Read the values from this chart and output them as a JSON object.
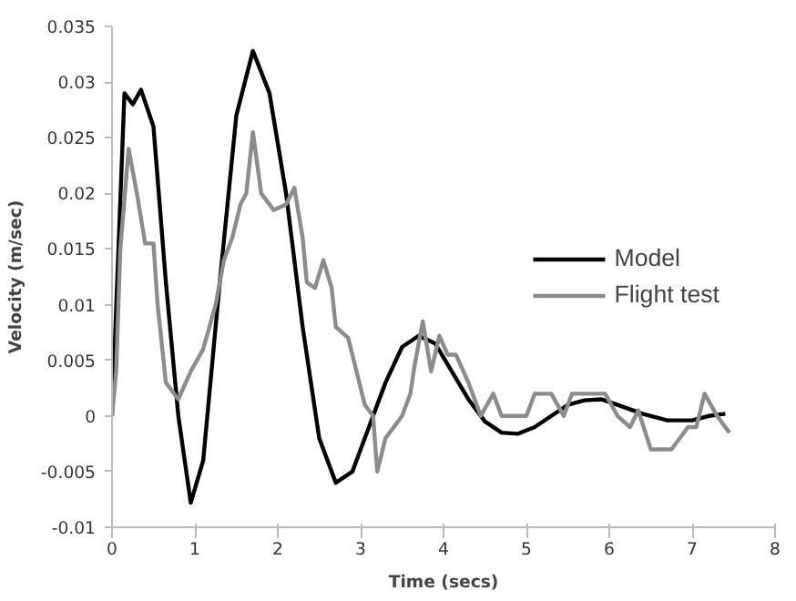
{
  "chart_data": {
    "type": "line",
    "xlabel": "Time (secs)",
    "ylabel": "Velocity (m/sec)",
    "xlim": [
      0,
      8
    ],
    "xticks": [
      0,
      1,
      2,
      3,
      4,
      5,
      6,
      7,
      8
    ],
    "ylim": [
      -0.01,
      0.035
    ],
    "yticks": [
      -0.01,
      -0.005,
      0,
      0.005,
      0.01,
      0.015,
      0.02,
      0.025,
      0.03,
      0.035
    ],
    "grid": false,
    "legend": "right",
    "marker": "none",
    "line_style": "solid",
    "series": [
      {
        "name": "Model",
        "color": "#000000",
        "x": [
          0,
          0.15,
          0.25,
          0.35,
          0.5,
          0.65,
          0.8,
          0.95,
          1.1,
          1.3,
          1.5,
          1.7,
          1.9,
          2.1,
          2.3,
          2.5,
          2.7,
          2.9,
          3.1,
          3.3,
          3.5,
          3.7,
          3.9,
          4.1,
          4.3,
          4.5,
          4.7,
          4.9,
          5.1,
          5.3,
          5.5,
          5.7,
          5.9,
          6.1,
          6.4,
          6.7,
          7.0,
          7.2,
          7.4
        ],
        "values": [
          0,
          0.029,
          0.028,
          0.0293,
          0.026,
          0.012,
          0,
          -0.0078,
          -0.004,
          0.012,
          0.027,
          0.0328,
          0.029,
          0.02,
          0.008,
          -0.002,
          -0.006,
          -0.005,
          -0.001,
          0.003,
          0.0062,
          0.0072,
          0.0065,
          0.004,
          0.0015,
          -0.0005,
          -0.0015,
          -0.0016,
          -0.001,
          0,
          0.001,
          0.0014,
          0.0015,
          0.001,
          0.0002,
          -0.0004,
          -0.0004,
          0,
          0.0002
        ]
      },
      {
        "name": "Flight test",
        "color": "#8c8c8c",
        "x": [
          0,
          0.05,
          0.1,
          0.2,
          0.3,
          0.4,
          0.5,
          0.55,
          0.65,
          0.8,
          0.95,
          1.1,
          1.25,
          1.35,
          1.45,
          1.55,
          1.62,
          1.7,
          1.8,
          1.95,
          2.1,
          2.2,
          2.3,
          2.35,
          2.45,
          2.55,
          2.65,
          2.7,
          2.85,
          2.95,
          3.05,
          3.15,
          3.2,
          3.3,
          3.5,
          3.6,
          3.65,
          3.75,
          3.85,
          3.95,
          4.05,
          4.15,
          4.3,
          4.45,
          4.6,
          4.7,
          5.0,
          5.1,
          5.3,
          5.45,
          5.55,
          5.95,
          6.1,
          6.25,
          6.35,
          6.5,
          6.75,
          6.95,
          7.05,
          7.15,
          7.3,
          7.45
        ],
        "values": [
          0,
          0.004,
          0.015,
          0.024,
          0.02,
          0.0155,
          0.0155,
          0.01,
          0.003,
          0.0015,
          0.004,
          0.006,
          0.01,
          0.014,
          0.016,
          0.019,
          0.02,
          0.0255,
          0.02,
          0.0185,
          0.019,
          0.0205,
          0.016,
          0.012,
          0.0115,
          0.014,
          0.0115,
          0.008,
          0.007,
          0.004,
          0.001,
          0,
          -0.005,
          -0.002,
          0,
          0.002,
          0.0045,
          0.0085,
          0.004,
          0.0072,
          0.0055,
          0.0055,
          0.003,
          0,
          0.002,
          0,
          0,
          0.002,
          0.002,
          0,
          0.002,
          0.002,
          0,
          -0.001,
          0.0005,
          -0.003,
          -0.003,
          -0.001,
          -0.001,
          0.002,
          0,
          -0.0015
        ]
      }
    ]
  }
}
